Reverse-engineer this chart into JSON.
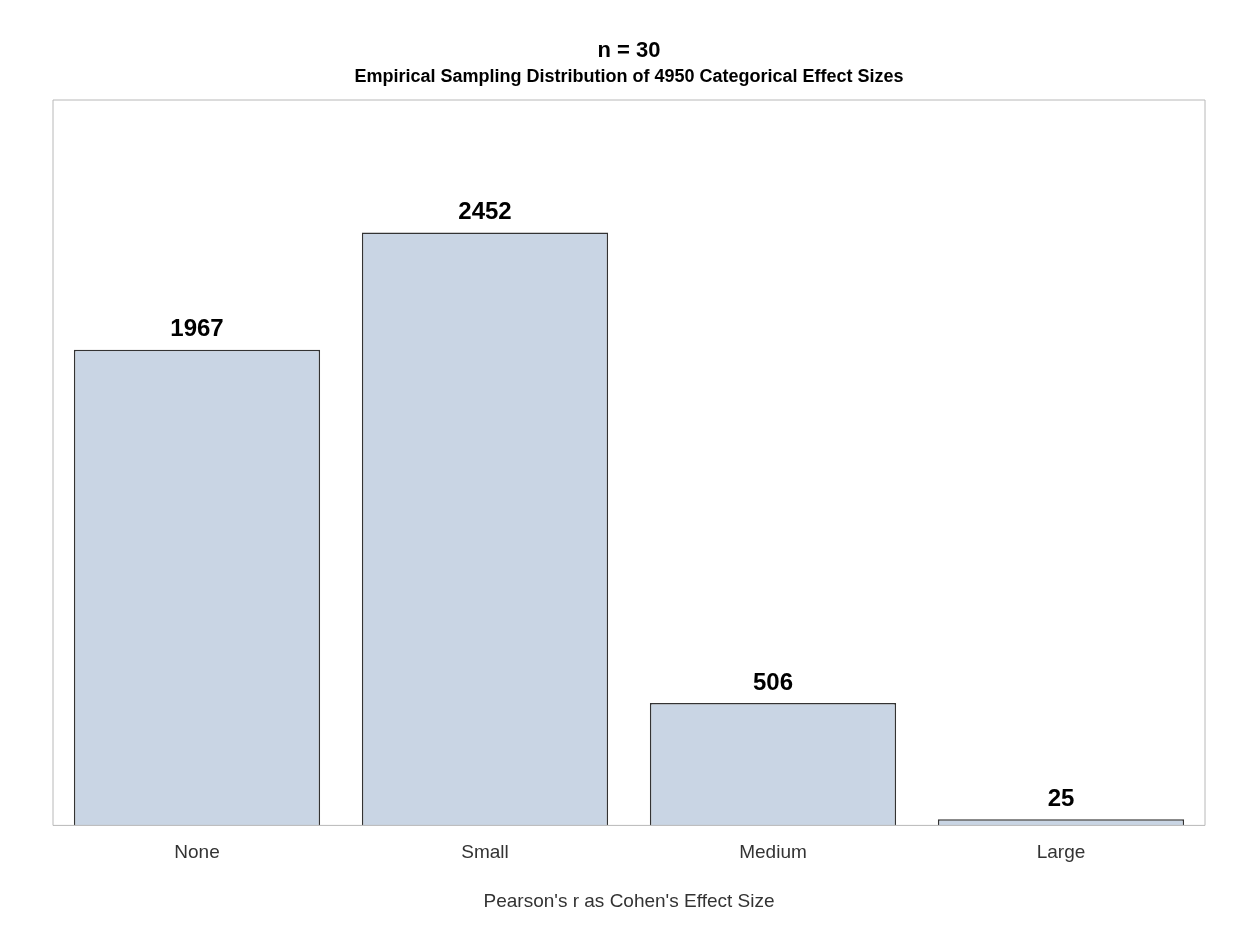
{
  "chart_data": {
    "type": "bar",
    "title": "n = 30",
    "subtitle": "Empirical Sampling Distribution of 4950 Categorical Effect Sizes",
    "xlabel": "Pearson's r as Cohen's Effect Size",
    "categories": [
      "None",
      "Small",
      "Medium",
      "Large"
    ],
    "values": [
      1967,
      2452,
      506,
      25
    ],
    "color": "#c9d5e4",
    "data_labels": true,
    "grid": false,
    "legend": false
  }
}
